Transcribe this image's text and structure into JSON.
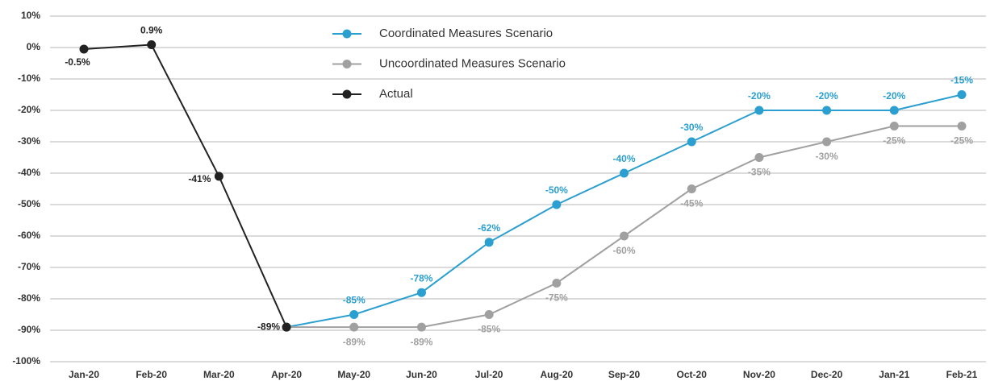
{
  "chart_data": {
    "type": "line",
    "categories": [
      "Jan-20",
      "Feb-20",
      "Mar-20",
      "Apr-20",
      "May-20",
      "Jun-20",
      "Jul-20",
      "Aug-20",
      "Sep-20",
      "Oct-20",
      "Nov-20",
      "Dec-20",
      "Jan-21",
      "Feb-21"
    ],
    "series": [
      {
        "name": "Coordinated Measures Scenario",
        "color": "#2a9fd0",
        "values": [
          null,
          null,
          null,
          -89,
          -85,
          -78,
          -62,
          -50,
          -40,
          -30,
          -20,
          -20,
          -20,
          -15
        ],
        "value_labels": [
          null,
          null,
          null,
          null,
          "-85%",
          "-78%",
          "-62%",
          "-50%",
          "-40%",
          "-30%",
          "-20%",
          "-20%",
          "-20%",
          "-15%"
        ]
      },
      {
        "name": "Uncoordinated Measures Scenario",
        "color": "#a0a0a0",
        "values": [
          null,
          null,
          null,
          -89,
          -89,
          -89,
          -85,
          -75,
          -60,
          -45,
          -35,
          -30,
          -25,
          -25
        ],
        "value_labels": [
          null,
          null,
          null,
          null,
          "-89%",
          "-89%",
          "-85%",
          "-75%",
          "-60%",
          "-45%",
          "-35%",
          "-30%",
          "-25%",
          "-25%"
        ]
      },
      {
        "name": "Actual",
        "color": "#222222",
        "values": [
          -0.5,
          0.9,
          -41,
          -89,
          null,
          null,
          null,
          null,
          null,
          null,
          null,
          null,
          null,
          null
        ],
        "value_labels": [
          "-0.5%",
          "0.9%",
          "-41%",
          "-89%",
          null,
          null,
          null,
          null,
          null,
          null,
          null,
          null,
          null,
          null
        ]
      }
    ],
    "ylim": [
      -100,
      10
    ],
    "yticks": [
      {
        "value": 10,
        "label": "10%"
      },
      {
        "value": 0,
        "label": "0%"
      },
      {
        "value": -10,
        "label": "-10%"
      },
      {
        "value": -20,
        "label": "-20%"
      },
      {
        "value": -30,
        "label": "-30%"
      },
      {
        "value": -40,
        "label": "-40%"
      },
      {
        "value": -50,
        "label": "-50%"
      },
      {
        "value": -60,
        "label": "-60%"
      },
      {
        "value": -70,
        "label": "-70%"
      },
      {
        "value": -80,
        "label": "-80%"
      },
      {
        "value": -90,
        "label": "-90%"
      },
      {
        "value": -100,
        "label": "-100%"
      }
    ],
    "grid": true,
    "legend": "top"
  }
}
